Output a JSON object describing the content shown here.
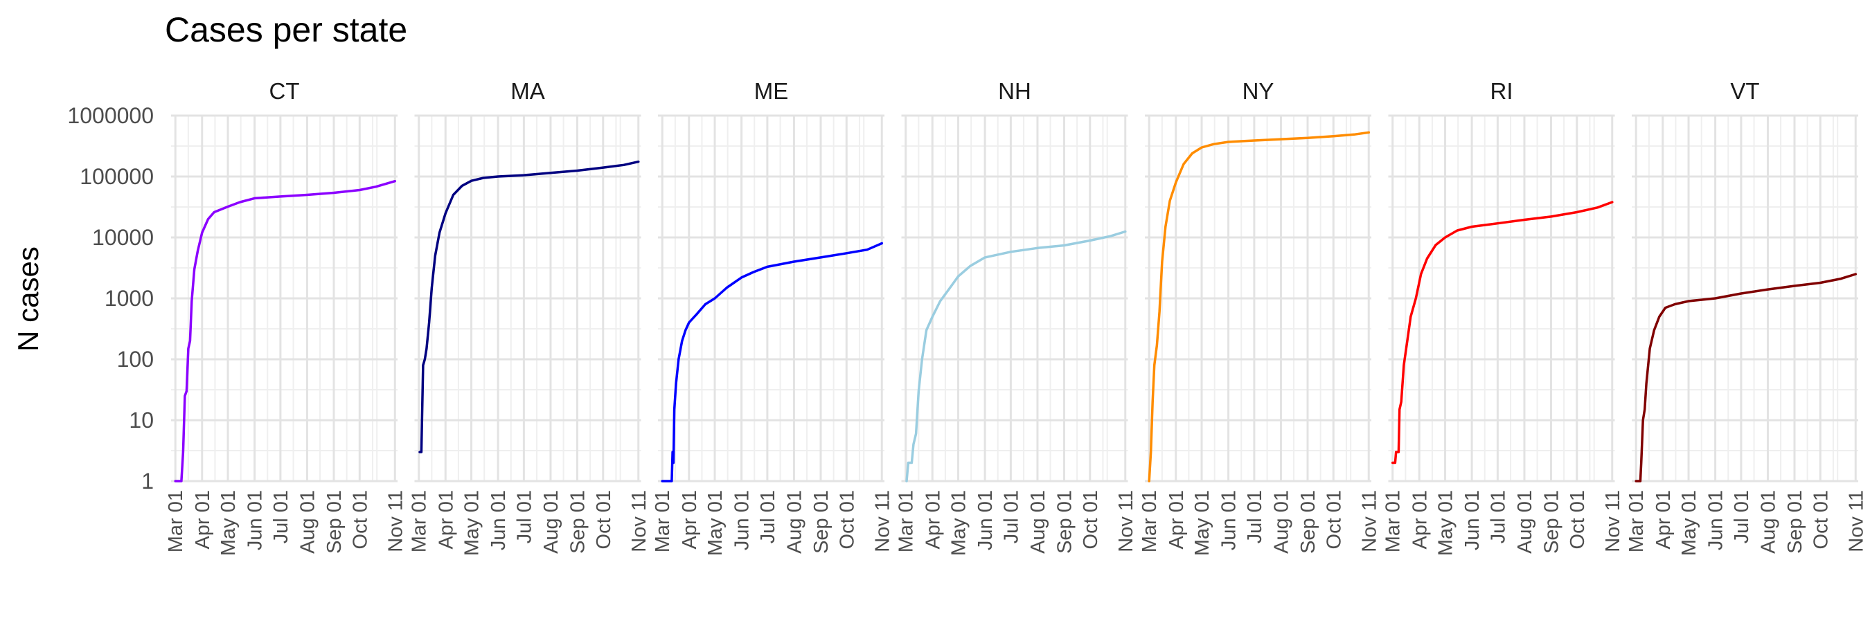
{
  "chart_data": {
    "type": "line",
    "title": "Cases per state",
    "ylabel": "N cases",
    "xlabel": "",
    "y_scale": "log10",
    "ylim": [
      1,
      1000000
    ],
    "y_ticks": [
      1,
      10,
      100,
      1000,
      10000,
      100000,
      1000000
    ],
    "y_tick_labels": [
      "1",
      "10",
      "100",
      "1000",
      "10000",
      "100000",
      "1000000"
    ],
    "xlim": [
      "2020-02-25",
      "2020-11-14"
    ],
    "x_ticks": [
      "2020-03-01",
      "2020-04-01",
      "2020-05-01",
      "2020-06-01",
      "2020-07-01",
      "2020-08-01",
      "2020-09-01",
      "2020-10-01",
      "2020-11-11"
    ],
    "x_tick_labels": [
      "Mar 01",
      "Apr 01",
      "May 01",
      "Jun 01",
      "Jul 01",
      "Aug 01",
      "Sep 01",
      "Oct 01",
      "Nov 11"
    ],
    "grid": true,
    "legend": "none",
    "series": [
      {
        "name": "CT",
        "color": "#8B00FF",
        "points": [
          [
            "2020-03-01",
            1
          ],
          [
            "2020-03-06",
            1
          ],
          [
            "2020-03-08",
            1
          ],
          [
            "2020-03-10",
            3
          ],
          [
            "2020-03-12",
            25
          ],
          [
            "2020-03-14",
            30
          ],
          [
            "2020-03-16",
            150
          ],
          [
            "2020-03-18",
            200
          ],
          [
            "2020-03-20",
            900
          ],
          [
            "2020-03-23",
            3000
          ],
          [
            "2020-03-27",
            6000
          ],
          [
            "2020-04-01",
            12000
          ],
          [
            "2020-04-08",
            20000
          ],
          [
            "2020-04-15",
            26000
          ],
          [
            "2020-05-01",
            32000
          ],
          [
            "2020-05-15",
            38000
          ],
          [
            "2020-06-01",
            44000
          ],
          [
            "2020-07-01",
            47000
          ],
          [
            "2020-08-01",
            50000
          ],
          [
            "2020-09-01",
            54000
          ],
          [
            "2020-10-01",
            60000
          ],
          [
            "2020-10-20",
            68000
          ],
          [
            "2020-11-11",
            84000
          ]
        ]
      },
      {
        "name": "MA",
        "color": "#000080",
        "points": [
          [
            "2020-03-02",
            3
          ],
          [
            "2020-03-04",
            3
          ],
          [
            "2020-03-06",
            80
          ],
          [
            "2020-03-08",
            100
          ],
          [
            "2020-03-10",
            150
          ],
          [
            "2020-03-13",
            400
          ],
          [
            "2020-03-16",
            1500
          ],
          [
            "2020-03-20",
            5000
          ],
          [
            "2020-03-25",
            12000
          ],
          [
            "2020-04-01",
            25000
          ],
          [
            "2020-04-10",
            50000
          ],
          [
            "2020-04-20",
            70000
          ],
          [
            "2020-05-01",
            85000
          ],
          [
            "2020-05-15",
            95000
          ],
          [
            "2020-06-01",
            100000
          ],
          [
            "2020-07-01",
            105000
          ],
          [
            "2020-08-01",
            115000
          ],
          [
            "2020-09-01",
            125000
          ],
          [
            "2020-10-01",
            140000
          ],
          [
            "2020-10-25",
            155000
          ],
          [
            "2020-11-11",
            175000
          ]
        ]
      },
      {
        "name": "ME",
        "color": "#0000FF",
        "points": [
          [
            "2020-03-01",
            1
          ],
          [
            "2020-03-08",
            1
          ],
          [
            "2020-03-12",
            1
          ],
          [
            "2020-03-13",
            3
          ],
          [
            "2020-03-14",
            2
          ],
          [
            "2020-03-15",
            15
          ],
          [
            "2020-03-17",
            40
          ],
          [
            "2020-03-20",
            100
          ],
          [
            "2020-03-24",
            200
          ],
          [
            "2020-03-28",
            300
          ],
          [
            "2020-04-01",
            400
          ],
          [
            "2020-04-10",
            550
          ],
          [
            "2020-04-20",
            800
          ],
          [
            "2020-05-01",
            1000
          ],
          [
            "2020-05-15",
            1500
          ],
          [
            "2020-06-01",
            2200
          ],
          [
            "2020-06-15",
            2700
          ],
          [
            "2020-07-01",
            3300
          ],
          [
            "2020-08-01",
            4000
          ],
          [
            "2020-09-01",
            4700
          ],
          [
            "2020-10-01",
            5500
          ],
          [
            "2020-10-25",
            6300
          ],
          [
            "2020-11-11",
            8000
          ]
        ]
      },
      {
        "name": "NH",
        "color": "#9ACDE0",
        "points": [
          [
            "2020-03-02",
            1
          ],
          [
            "2020-03-04",
            2
          ],
          [
            "2020-03-08",
            2
          ],
          [
            "2020-03-10",
            4
          ],
          [
            "2020-03-13",
            6
          ],
          [
            "2020-03-16",
            30
          ],
          [
            "2020-03-20",
            100
          ],
          [
            "2020-03-25",
            300
          ],
          [
            "2020-04-01",
            500
          ],
          [
            "2020-04-10",
            900
          ],
          [
            "2020-04-20",
            1400
          ],
          [
            "2020-05-01",
            2300
          ],
          [
            "2020-05-15",
            3400
          ],
          [
            "2020-06-01",
            4700
          ],
          [
            "2020-07-01",
            5800
          ],
          [
            "2020-08-01",
            6700
          ],
          [
            "2020-09-01",
            7400
          ],
          [
            "2020-10-01",
            8900
          ],
          [
            "2020-10-25",
            10500
          ],
          [
            "2020-11-11",
            12500
          ]
        ]
      },
      {
        "name": "NY",
        "color": "#FF8C00",
        "points": [
          [
            "2020-03-01",
            1
          ],
          [
            "2020-03-03",
            3
          ],
          [
            "2020-03-05",
            20
          ],
          [
            "2020-03-07",
            80
          ],
          [
            "2020-03-10",
            170
          ],
          [
            "2020-03-13",
            600
          ],
          [
            "2020-03-16",
            4000
          ],
          [
            "2020-03-20",
            15000
          ],
          [
            "2020-03-25",
            40000
          ],
          [
            "2020-04-01",
            80000
          ],
          [
            "2020-04-10",
            160000
          ],
          [
            "2020-04-20",
            240000
          ],
          [
            "2020-05-01",
            300000
          ],
          [
            "2020-05-15",
            340000
          ],
          [
            "2020-06-01",
            370000
          ],
          [
            "2020-07-01",
            390000
          ],
          [
            "2020-08-01",
            410000
          ],
          [
            "2020-09-01",
            430000
          ],
          [
            "2020-10-01",
            460000
          ],
          [
            "2020-10-25",
            490000
          ],
          [
            "2020-11-11",
            530000
          ]
        ]
      },
      {
        "name": "RI",
        "color": "#FF0000",
        "points": [
          [
            "2020-03-01",
            2
          ],
          [
            "2020-03-04",
            2
          ],
          [
            "2020-03-05",
            3
          ],
          [
            "2020-03-08",
            3
          ],
          [
            "2020-03-09",
            15
          ],
          [
            "2020-03-11",
            20
          ],
          [
            "2020-03-14",
            80
          ],
          [
            "2020-03-18",
            200
          ],
          [
            "2020-03-22",
            500
          ],
          [
            "2020-03-28",
            1000
          ],
          [
            "2020-04-03",
            2500
          ],
          [
            "2020-04-10",
            4500
          ],
          [
            "2020-04-20",
            7500
          ],
          [
            "2020-05-01",
            10000
          ],
          [
            "2020-05-15",
            13000
          ],
          [
            "2020-06-01",
            15000
          ],
          [
            "2020-07-01",
            17000
          ],
          [
            "2020-08-01",
            19500
          ],
          [
            "2020-09-01",
            22000
          ],
          [
            "2020-10-01",
            26000
          ],
          [
            "2020-10-25",
            31000
          ],
          [
            "2020-11-11",
            38000
          ]
        ]
      },
      {
        "name": "VT",
        "color": "#800000",
        "points": [
          [
            "2020-03-01",
            1
          ],
          [
            "2020-03-06",
            1
          ],
          [
            "2020-03-07",
            2
          ],
          [
            "2020-03-09",
            10
          ],
          [
            "2020-03-11",
            15
          ],
          [
            "2020-03-13",
            40
          ],
          [
            "2020-03-17",
            150
          ],
          [
            "2020-03-22",
            300
          ],
          [
            "2020-03-28",
            500
          ],
          [
            "2020-04-04",
            700
          ],
          [
            "2020-04-15",
            800
          ],
          [
            "2020-05-01",
            900
          ],
          [
            "2020-06-01",
            1000
          ],
          [
            "2020-07-01",
            1200
          ],
          [
            "2020-08-01",
            1400
          ],
          [
            "2020-09-01",
            1600
          ],
          [
            "2020-10-01",
            1800
          ],
          [
            "2020-10-25",
            2100
          ],
          [
            "2020-11-11",
            2500
          ]
        ]
      }
    ]
  }
}
